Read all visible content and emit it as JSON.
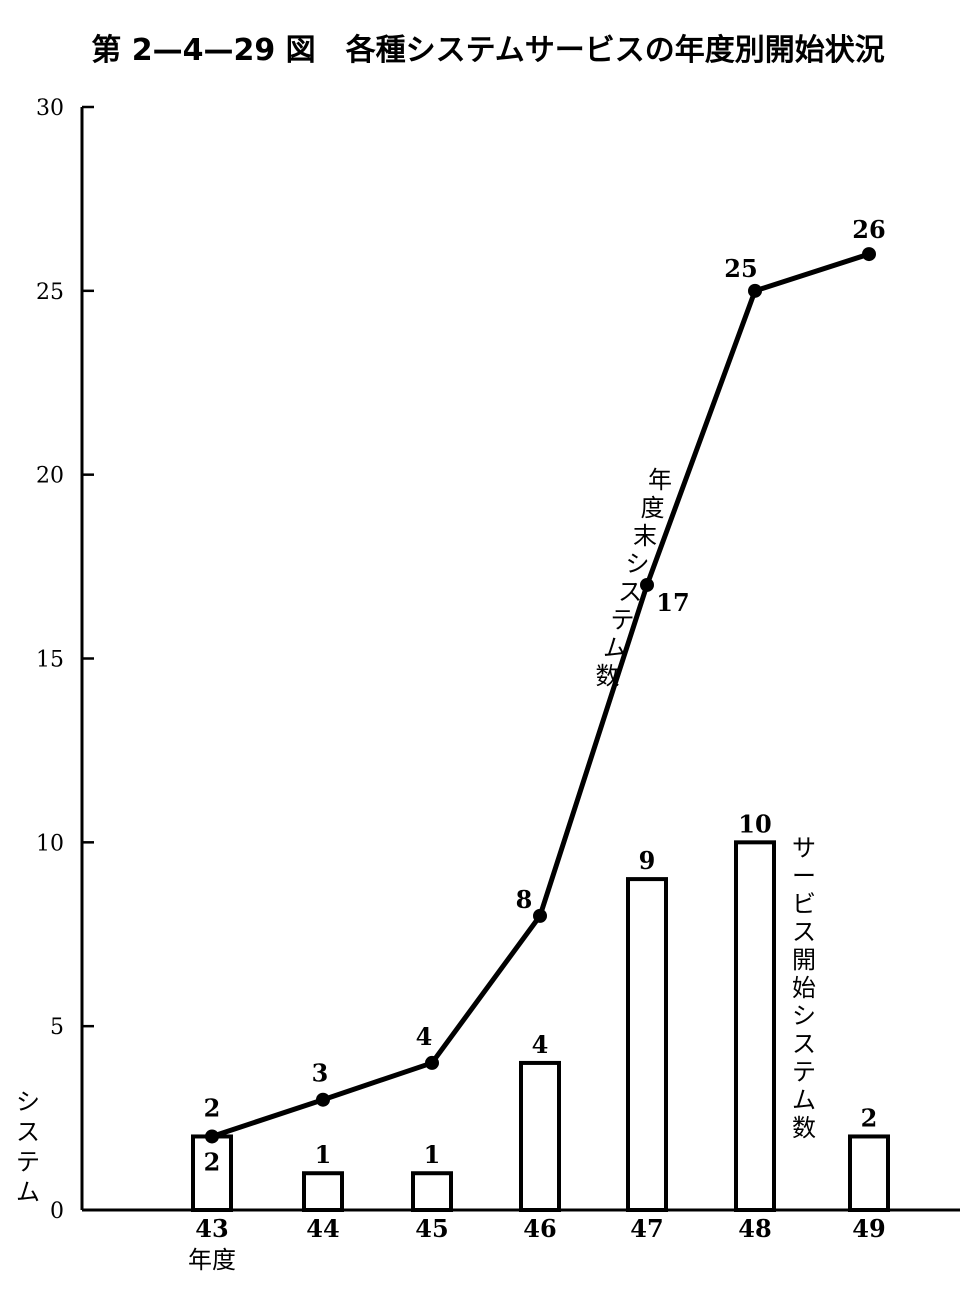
{
  "chart_data": {
    "type": "bar+line",
    "title": "第 2—4—29 図　各種システムサービスの年度別開始状況",
    "ylabel": "システム",
    "xlabel": "年度",
    "categories": [
      "43",
      "44",
      "45",
      "46",
      "47",
      "48",
      "49"
    ],
    "ylim": [
      0,
      30
    ],
    "yticks": [
      0,
      5,
      10,
      15,
      20,
      25,
      30
    ],
    "series": [
      {
        "name": "サービス開始システム数",
        "type": "bar",
        "values": [
          2,
          1,
          1,
          4,
          9,
          10,
          2
        ]
      },
      {
        "name": "年度末システム数",
        "type": "line",
        "values": [
          2,
          3,
          4,
          8,
          17,
          25,
          26
        ]
      }
    ],
    "grid": false,
    "legend": "none",
    "colors": {
      "ink": "#000000",
      "background": "#ffffff"
    }
  }
}
